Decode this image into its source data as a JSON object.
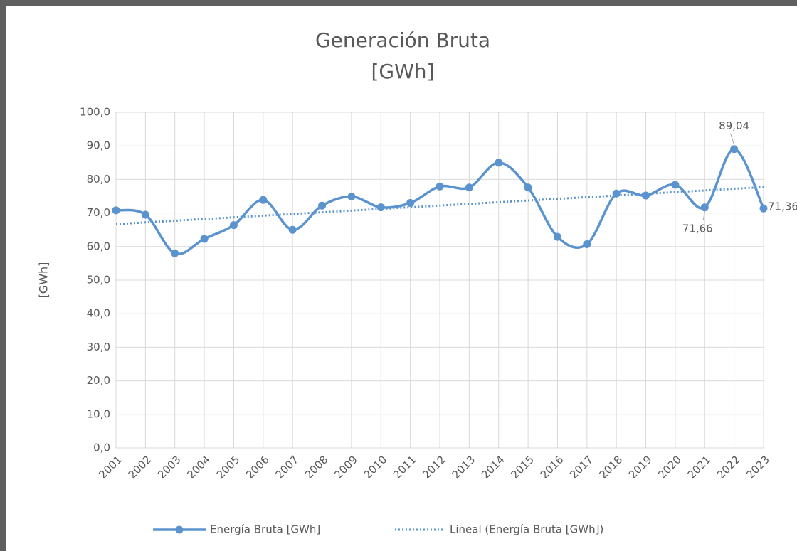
{
  "chart_data": {
    "type": "line",
    "title": "Generación Bruta",
    "subtitle": "[GWh]",
    "y_label": "[GWh]",
    "categories": [
      "2001",
      "2002",
      "2003",
      "2004",
      "2005",
      "2006",
      "2007",
      "2008",
      "2009",
      "2010",
      "2011",
      "2012",
      "2013",
      "2014",
      "2015",
      "2016",
      "2017",
      "2018",
      "2019",
      "2020",
      "2021",
      "2022",
      "2023"
    ],
    "series": [
      {
        "name": "Energía Bruta [GWh]",
        "color": "#5b93cf",
        "values": [
          70.8,
          69.5,
          58.0,
          62.3,
          66.4,
          73.9,
          65.0,
          72.2,
          74.9,
          71.7,
          73.0,
          77.9,
          77.6,
          85.0,
          77.6,
          62.9,
          60.7,
          75.8,
          75.2,
          78.4,
          71.66,
          89.04,
          71.36
        ],
        "value_labels": [
          null,
          null,
          null,
          null,
          null,
          null,
          null,
          null,
          null,
          null,
          null,
          null,
          null,
          null,
          null,
          null,
          null,
          null,
          null,
          null,
          "71,66",
          "89,04",
          "71,36"
        ]
      }
    ],
    "trendline": {
      "name": "Lineal (Energía Bruta [GWh])",
      "kind": "linear"
    },
    "ylim": [
      0,
      100
    ],
    "yticks": [
      {
        "value": 0,
        "label": "0,0"
      },
      {
        "value": 10,
        "label": "10,0"
      },
      {
        "value": 20,
        "label": "20,0"
      },
      {
        "value": 30,
        "label": "30,0"
      },
      {
        "value": 40,
        "label": "40,0"
      },
      {
        "value": 50,
        "label": "50,0"
      },
      {
        "value": 60,
        "label": "60,0"
      },
      {
        "value": 70,
        "label": "70,0"
      },
      {
        "value": 80,
        "label": "80,0"
      },
      {
        "value": 90,
        "label": "90,0"
      },
      {
        "value": 100,
        "label": "100,0"
      }
    ],
    "grid": true,
    "legend": "bottom"
  }
}
